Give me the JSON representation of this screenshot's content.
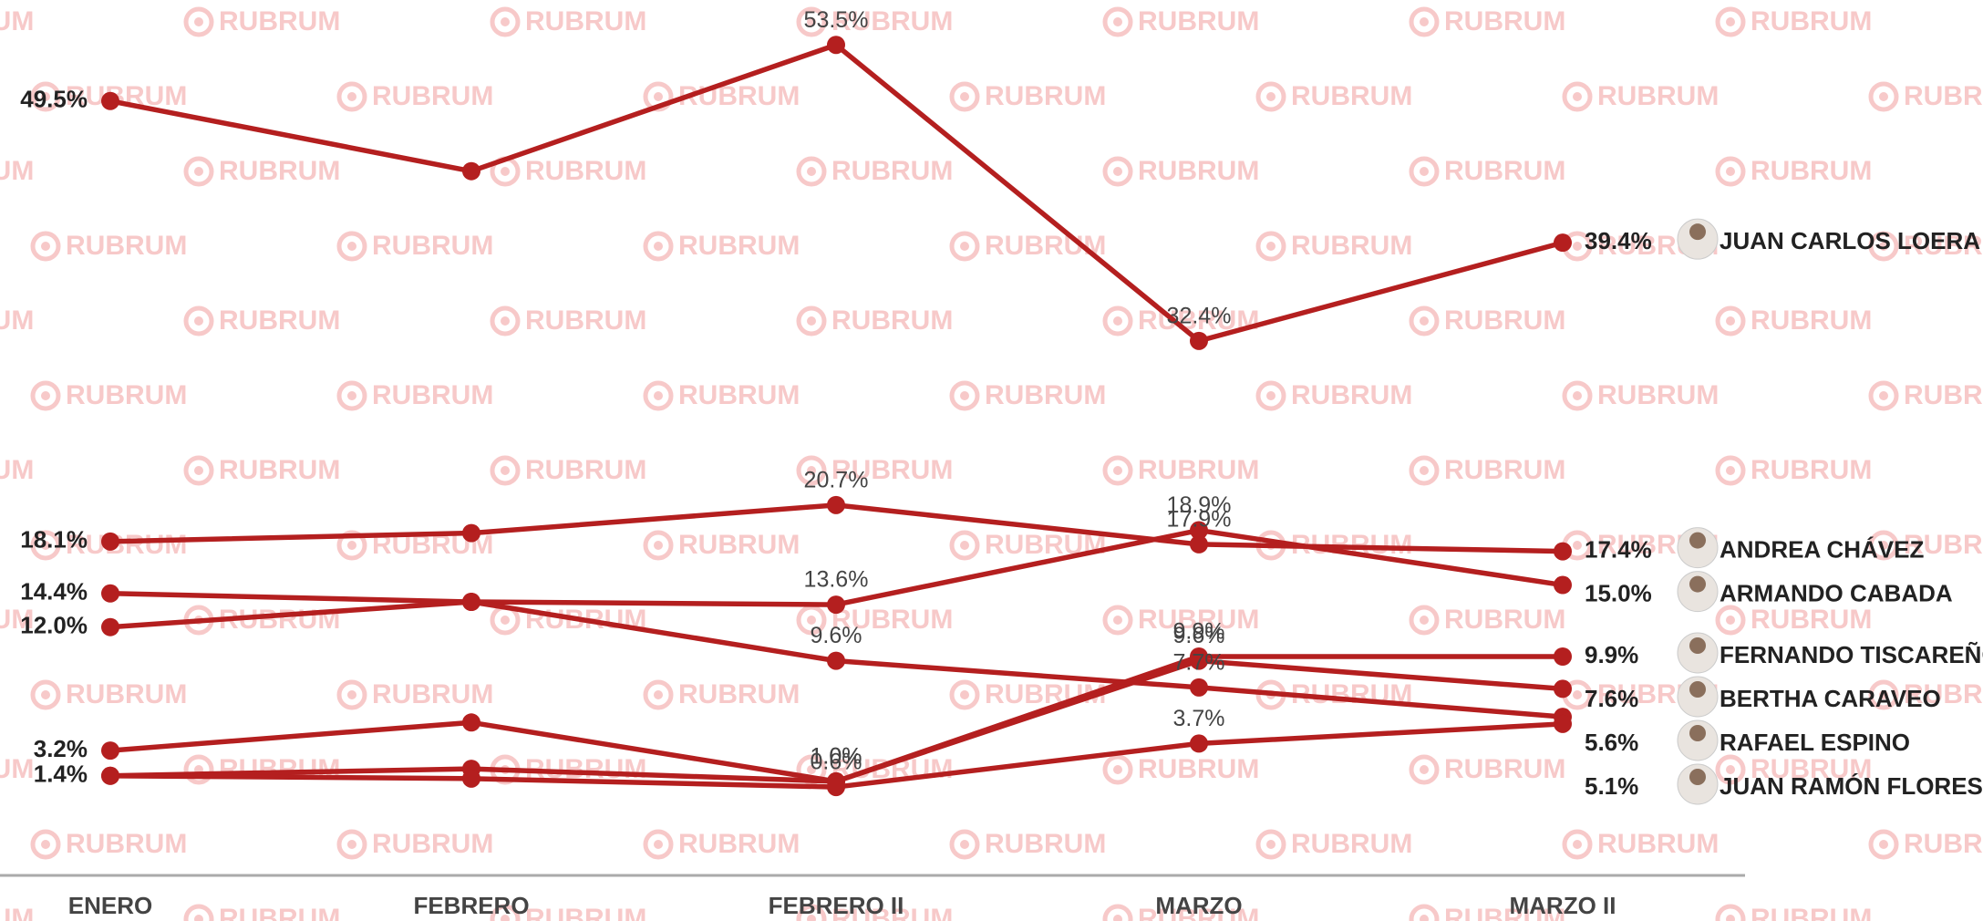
{
  "chart_data": {
    "type": "line",
    "watermark": "RUBRUM",
    "categories": [
      "ENERO",
      "FEBRERO",
      "FEBRERO II",
      "MARZO",
      "MARZO II"
    ],
    "ylim": [
      -5.7,
      56.7
    ],
    "series": [
      {
        "name": "JUAN CARLOS LOERA",
        "color": "#b41f1f",
        "values": [
          49.5,
          44.5,
          53.5,
          32.4,
          39.4
        ],
        "value_labels": [
          "49.5%",
          null,
          "53.5%",
          "32.4%",
          "39.4%"
        ]
      },
      {
        "name": "ANDREA CHÁVEZ",
        "color": "#b41f1f",
        "values": [
          18.1,
          18.7,
          20.7,
          17.9,
          17.4
        ],
        "value_labels": [
          "18.1%",
          null,
          "20.7%",
          "17.9%",
          "17.4%"
        ]
      },
      {
        "name": "ARMANDO CABADA",
        "color": "#b41f1f",
        "values": [
          12.0,
          13.8,
          13.6,
          18.9,
          15.0
        ],
        "value_labels": [
          "12.0%",
          null,
          "13.6%",
          "18.9%",
          "15.0%"
        ]
      },
      {
        "name": "FERNANDO TISCAREÑO",
        "color": "#b41f1f",
        "values": [
          3.2,
          5.2,
          1.0,
          9.9,
          9.9
        ],
        "value_labels": [
          "3.2%",
          null,
          "1.0%",
          "9.9%",
          "9.9%"
        ]
      },
      {
        "name": "BERTHA CARAVEO",
        "color": "#b41f1f",
        "values": [
          1.4,
          1.9,
          1.0,
          9.6,
          7.6
        ],
        "value_labels": [
          null,
          null,
          "1.0%",
          "9.6%",
          "7.6%"
        ]
      },
      {
        "name": "RAFAEL ESPINO",
        "color": "#b41f1f",
        "values": [
          14.4,
          13.8,
          9.6,
          7.7,
          5.6
        ],
        "value_labels": [
          "14.4%",
          null,
          "9.6%",
          "7.7%",
          "5.6%"
        ]
      },
      {
        "name": "JUAN RAMÓN FLORES",
        "color": "#b41f1f",
        "values": [
          1.4,
          1.2,
          0.6,
          3.7,
          5.1
        ],
        "value_labels": [
          "1.4%",
          null,
          "0.6%",
          "3.7%",
          "5.1%"
        ]
      }
    ]
  }
}
